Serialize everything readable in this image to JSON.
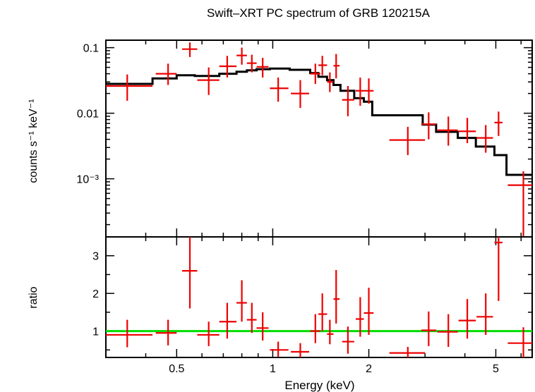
{
  "chart_data": [
    {
      "panel": "spectrum",
      "type": "scatter",
      "title": "Swift–XRT PC spectrum of GRB 120215A",
      "xlabel": "Energy (keV)",
      "ylabel": "counts s⁻¹ keV⁻¹",
      "xscale": "log",
      "yscale": "log",
      "xlim": [
        0.3,
        6.5
      ],
      "ylim": [
        0.00013,
        0.13
      ],
      "y_tick_labels": [
        "0.1",
        "0.01",
        "10⁻³"
      ],
      "data_color": "#ee0000",
      "model_color": "#000000",
      "points": [
        {
          "x": 0.35,
          "xerr": [
            0.3,
            0.42
          ],
          "y": 0.026,
          "yerr": [
            0.0155,
            0.039
          ]
        },
        {
          "x": 0.47,
          "xerr": [
            0.43,
            0.5
          ],
          "y": 0.04,
          "yerr": [
            0.027,
            0.057
          ]
        },
        {
          "x": 0.55,
          "xerr": [
            0.52,
            0.58
          ],
          "y": 0.095,
          "yerr": [
            0.072,
            0.12
          ]
        },
        {
          "x": 0.63,
          "xerr": [
            0.58,
            0.68
          ],
          "y": 0.032,
          "yerr": [
            0.019,
            0.05
          ]
        },
        {
          "x": 0.72,
          "xerr": [
            0.68,
            0.77
          ],
          "y": 0.052,
          "yerr": [
            0.035,
            0.075
          ]
        },
        {
          "x": 0.8,
          "xerr": [
            0.77,
            0.83
          ],
          "y": 0.076,
          "yerr": [
            0.055,
            0.1
          ]
        },
        {
          "x": 0.86,
          "xerr": [
            0.83,
            0.89
          ],
          "y": 0.058,
          "yerr": [
            0.042,
            0.078
          ]
        },
        {
          "x": 0.93,
          "xerr": [
            0.89,
            0.97
          ],
          "y": 0.051,
          "yerr": [
            0.035,
            0.07
          ]
        },
        {
          "x": 1.04,
          "xerr": [
            0.98,
            1.12
          ],
          "y": 0.024,
          "yerr": [
            0.015,
            0.035
          ]
        },
        {
          "x": 1.22,
          "xerr": [
            1.14,
            1.3
          ],
          "y": 0.02,
          "yerr": [
            0.012,
            0.032
          ]
        },
        {
          "x": 1.36,
          "xerr": [
            1.31,
            1.41
          ],
          "y": 0.04,
          "yerr": [
            0.028,
            0.057
          ]
        },
        {
          "x": 1.43,
          "xerr": [
            1.39,
            1.48
          ],
          "y": 0.054,
          "yerr": [
            0.038,
            0.075
          ]
        },
        {
          "x": 1.51,
          "xerr": [
            1.48,
            1.55
          ],
          "y": 0.03,
          "yerr": [
            0.021,
            0.042
          ]
        },
        {
          "x": 1.58,
          "xerr": [
            1.55,
            1.62
          ],
          "y": 0.053,
          "yerr": [
            0.034,
            0.08
          ]
        },
        {
          "x": 1.72,
          "xerr": [
            1.65,
            1.8
          ],
          "y": 0.016,
          "yerr": [
            0.009,
            0.026
          ]
        },
        {
          "x": 1.88,
          "xerr": [
            1.82,
            1.93
          ],
          "y": 0.022,
          "yerr": [
            0.013,
            0.035
          ]
        },
        {
          "x": 2.0,
          "xerr": [
            1.93,
            2.07
          ],
          "y": 0.022,
          "yerr": [
            0.014,
            0.034
          ]
        },
        {
          "x": 2.65,
          "xerr": [
            2.32,
            3.0
          ],
          "y": 0.0039,
          "yerr": [
            0.0023,
            0.0062
          ]
        },
        {
          "x": 3.08,
          "xerr": [
            2.92,
            3.25
          ],
          "y": 0.0068,
          "yerr": [
            0.004,
            0.0103
          ]
        },
        {
          "x": 3.55,
          "xerr": [
            3.28,
            3.8
          ],
          "y": 0.0055,
          "yerr": [
            0.0032,
            0.0089
          ]
        },
        {
          "x": 4.07,
          "xerr": [
            3.82,
            4.33
          ],
          "y": 0.0053,
          "yerr": [
            0.0035,
            0.0085
          ]
        },
        {
          "x": 4.65,
          "xerr": [
            4.35,
            4.9
          ],
          "y": 0.0042,
          "yerr": [
            0.0025,
            0.0066
          ]
        },
        {
          "x": 5.1,
          "xerr": [
            4.95,
            5.25
          ],
          "y": 0.0072,
          "yerr": [
            0.0045,
            0.0106
          ]
        },
        {
          "x": 6.1,
          "xerr": [
            5.45,
            6.5
          ],
          "y": 0.0008,
          "yerr": [
            0.00013,
            0.0013
          ]
        }
      ],
      "model_steps": [
        {
          "x0": 0.3,
          "x1": 0.42,
          "y": 0.028
        },
        {
          "x0": 0.42,
          "x1": 0.5,
          "y": 0.034
        },
        {
          "x0": 0.5,
          "x1": 0.57,
          "y": 0.038
        },
        {
          "x0": 0.57,
          "x1": 0.68,
          "y": 0.037
        },
        {
          "x0": 0.68,
          "x1": 0.77,
          "y": 0.04
        },
        {
          "x0": 0.77,
          "x1": 0.83,
          "y": 0.043
        },
        {
          "x0": 0.83,
          "x1": 0.89,
          "y": 0.045
        },
        {
          "x0": 0.89,
          "x1": 0.98,
          "y": 0.047
        },
        {
          "x0": 0.98,
          "x1": 1.13,
          "y": 0.048
        },
        {
          "x0": 1.13,
          "x1": 1.31,
          "y": 0.046
        },
        {
          "x0": 1.31,
          "x1": 1.39,
          "y": 0.041
        },
        {
          "x0": 1.39,
          "x1": 1.48,
          "y": 0.036
        },
        {
          "x0": 1.48,
          "x1": 1.55,
          "y": 0.032
        },
        {
          "x0": 1.55,
          "x1": 1.63,
          "y": 0.027
        },
        {
          "x0": 1.63,
          "x1": 1.8,
          "y": 0.022
        },
        {
          "x0": 1.8,
          "x1": 1.93,
          "y": 0.017
        },
        {
          "x0": 1.93,
          "x1": 2.05,
          "y": 0.015
        },
        {
          "x0": 2.05,
          "x1": 2.95,
          "y": 0.0093
        },
        {
          "x0": 2.95,
          "x1": 3.25,
          "y": 0.0067
        },
        {
          "x0": 3.25,
          "x1": 3.8,
          "y": 0.0052
        },
        {
          "x0": 3.8,
          "x1": 4.33,
          "y": 0.0042
        },
        {
          "x0": 4.33,
          "x1": 4.95,
          "y": 0.0031
        },
        {
          "x0": 4.95,
          "x1": 5.4,
          "y": 0.0023
        },
        {
          "x0": 5.4,
          "x1": 6.5,
          "y": 0.00115
        }
      ]
    },
    {
      "panel": "ratio",
      "type": "scatter",
      "xlabel": "Energy (keV)",
      "ylabel": "ratio",
      "xscale": "log",
      "yscale": "linear",
      "xlim": [
        0.3,
        6.5
      ],
      "ylim": [
        0.3,
        3.5
      ],
      "x_tick_labels": [
        "0.5",
        "1",
        "2",
        "5"
      ],
      "y_tick_labels": [
        "1",
        "2",
        "3"
      ],
      "reference_line": 1.0,
      "reference_color": "#00dd00",
      "data_color": "#ee0000",
      "points": [
        {
          "x": 0.35,
          "xerr": [
            0.3,
            0.42
          ],
          "y": 0.9,
          "yerr": [
            0.57,
            1.3
          ]
        },
        {
          "x": 0.47,
          "xerr": [
            0.43,
            0.5
          ],
          "y": 0.95,
          "yerr": [
            0.62,
            1.3
          ]
        },
        {
          "x": 0.55,
          "xerr": [
            0.52,
            0.58
          ],
          "y": 2.6,
          "yerr": [
            1.6,
            3.5
          ]
        },
        {
          "x": 0.63,
          "xerr": [
            0.58,
            0.68
          ],
          "y": 0.9,
          "yerr": [
            0.6,
            1.25
          ]
        },
        {
          "x": 0.72,
          "xerr": [
            0.68,
            0.77
          ],
          "y": 1.25,
          "yerr": [
            0.8,
            1.75
          ]
        },
        {
          "x": 0.8,
          "xerr": [
            0.77,
            0.83
          ],
          "y": 1.75,
          "yerr": [
            1.25,
            2.35
          ]
        },
        {
          "x": 0.86,
          "xerr": [
            0.83,
            0.89
          ],
          "y": 1.3,
          "yerr": [
            0.95,
            1.75
          ]
        },
        {
          "x": 0.93,
          "xerr": [
            0.89,
            0.97
          ],
          "y": 1.08,
          "yerr": [
            0.75,
            1.5
          ]
        },
        {
          "x": 1.04,
          "xerr": [
            0.98,
            1.12
          ],
          "y": 0.5,
          "yerr": [
            0.32,
            0.72
          ]
        },
        {
          "x": 1.22,
          "xerr": [
            1.14,
            1.3
          ],
          "y": 0.45,
          "yerr": [
            0.3,
            0.68
          ]
        },
        {
          "x": 1.36,
          "xerr": [
            1.31,
            1.41
          ],
          "y": 1.0,
          "yerr": [
            0.68,
            1.45
          ]
        },
        {
          "x": 1.43,
          "xerr": [
            1.39,
            1.48
          ],
          "y": 1.45,
          "yerr": [
            1.0,
            2.0
          ]
        },
        {
          "x": 1.51,
          "xerr": [
            1.48,
            1.55
          ],
          "y": 0.92,
          "yerr": [
            0.65,
            1.3
          ]
        },
        {
          "x": 1.58,
          "xerr": [
            1.55,
            1.62
          ],
          "y": 1.85,
          "yerr": [
            1.2,
            2.62
          ]
        },
        {
          "x": 1.72,
          "xerr": [
            1.65,
            1.8
          ],
          "y": 0.72,
          "yerr": [
            0.4,
            1.12
          ]
        },
        {
          "x": 1.88,
          "xerr": [
            1.82,
            1.93
          ],
          "y": 1.32,
          "yerr": [
            0.85,
            1.9
          ]
        },
        {
          "x": 2.0,
          "xerr": [
            1.93,
            2.07
          ],
          "y": 1.48,
          "yerr": [
            0.9,
            2.15
          ]
        },
        {
          "x": 2.65,
          "xerr": [
            2.32,
            3.0
          ],
          "y": 0.42,
          "yerr": [
            0.3,
            0.58
          ]
        },
        {
          "x": 3.08,
          "xerr": [
            2.92,
            3.25
          ],
          "y": 1.02,
          "yerr": [
            0.6,
            1.52
          ]
        },
        {
          "x": 3.55,
          "xerr": [
            3.28,
            3.8
          ],
          "y": 0.98,
          "yerr": [
            0.58,
            1.45
          ]
        },
        {
          "x": 4.07,
          "xerr": [
            3.82,
            4.33
          ],
          "y": 1.28,
          "yerr": [
            0.8,
            1.85
          ]
        },
        {
          "x": 4.65,
          "xerr": [
            4.35,
            4.9
          ],
          "y": 1.38,
          "yerr": [
            0.9,
            2.0
          ]
        },
        {
          "x": 5.1,
          "xerr": [
            4.95,
            5.25
          ],
          "y": 3.35,
          "yerr": [
            1.8,
            3.5
          ]
        },
        {
          "x": 6.1,
          "xerr": [
            5.45,
            6.5
          ],
          "y": 0.68,
          "yerr": [
            0.3,
            1.1
          ]
        }
      ]
    }
  ]
}
